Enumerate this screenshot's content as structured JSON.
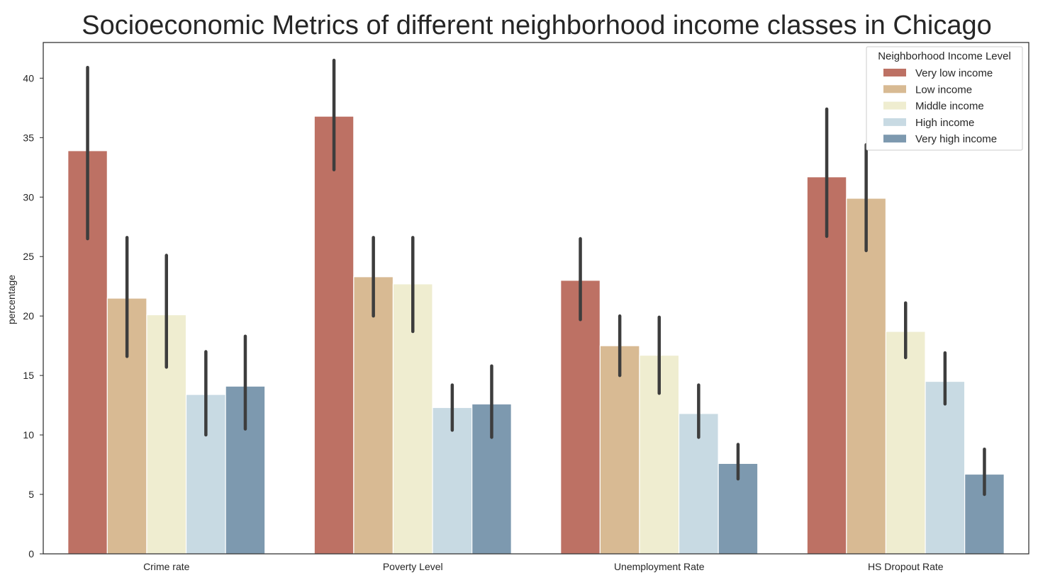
{
  "chart_data": {
    "type": "bar",
    "title": "Socioeconomic Metrics of different neighborhood income classes in Chicago",
    "xlabel": "",
    "ylabel": "percentage",
    "ylim": [
      0,
      43
    ],
    "yticks": [
      0,
      5,
      10,
      15,
      20,
      25,
      30,
      35,
      40
    ],
    "grid": false,
    "legend_placement": "top-right",
    "legend_title": "Neighborhood Income Level",
    "categories": [
      "Crime rate",
      "Poverty Level",
      "Unemployment Rate",
      "HS Dropout Rate"
    ],
    "series": [
      {
        "name": "Very low income",
        "color": "#bd7164",
        "values": [
          33.9,
          36.8,
          23.0,
          31.7
        ],
        "err_low": [
          26.5,
          32.3,
          19.7,
          26.7
        ],
        "err_high": [
          40.9,
          41.5,
          26.5,
          37.4
        ]
      },
      {
        "name": "Low income",
        "color": "#d8ba93",
        "values": [
          21.5,
          23.3,
          17.5,
          29.9
        ],
        "err_low": [
          16.6,
          20.0,
          15.0,
          25.5
        ],
        "err_high": [
          26.6,
          26.6,
          20.0,
          34.4
        ]
      },
      {
        "name": "Middle income",
        "color": "#efedd0",
        "values": [
          20.1,
          22.7,
          16.7,
          18.7
        ],
        "err_low": [
          15.7,
          18.7,
          13.5,
          16.5
        ],
        "err_high": [
          25.1,
          26.6,
          19.9,
          21.1
        ]
      },
      {
        "name": "High income",
        "color": "#c8dae3",
        "values": [
          13.4,
          12.3,
          11.8,
          14.5
        ],
        "err_low": [
          10.0,
          10.4,
          9.8,
          12.6
        ],
        "err_high": [
          17.0,
          14.2,
          14.2,
          16.9
        ]
      },
      {
        "name": "Very high income",
        "color": "#7d99af",
        "values": [
          14.1,
          12.6,
          7.6,
          6.7
        ],
        "err_low": [
          10.5,
          9.8,
          6.3,
          5.0
        ],
        "err_high": [
          18.3,
          15.8,
          9.2,
          8.8
        ]
      }
    ]
  }
}
